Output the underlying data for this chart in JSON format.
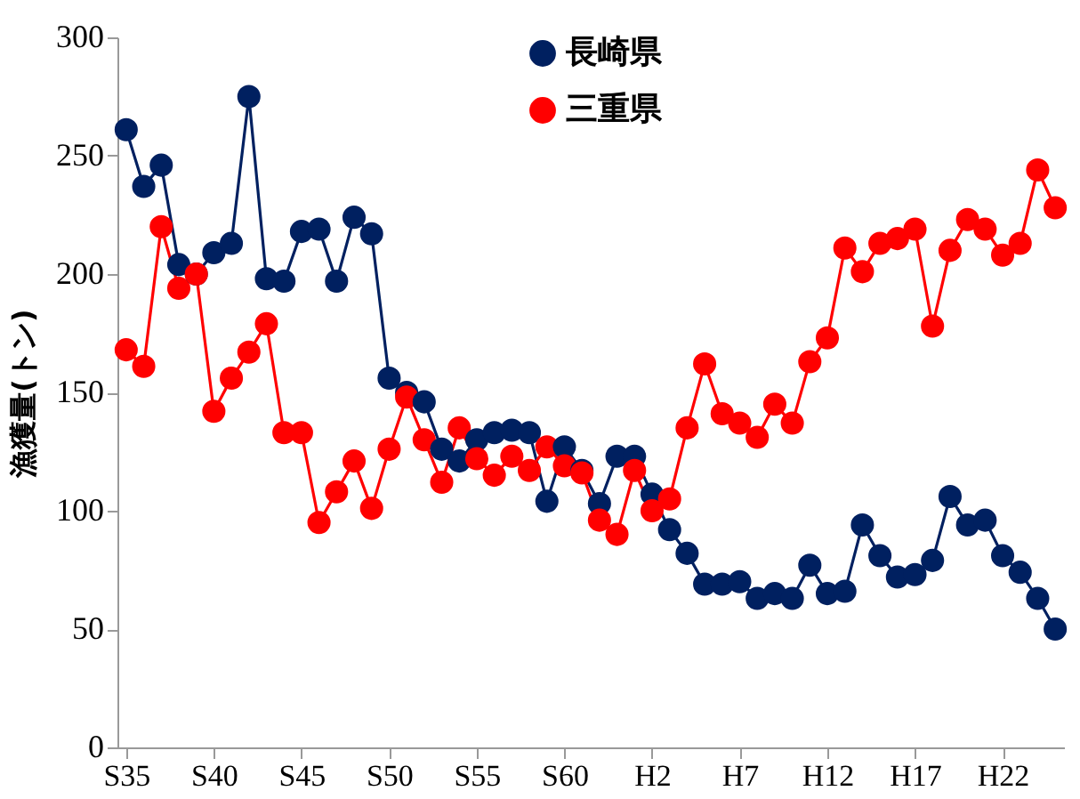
{
  "chart_data": {
    "type": "line",
    "ylabel": "漁獲量(トン)",
    "categories": [
      "S35",
      null,
      null,
      null,
      null,
      "S40",
      null,
      null,
      null,
      null,
      "S45",
      null,
      null,
      null,
      null,
      "S50",
      null,
      null,
      null,
      null,
      "S55",
      null,
      null,
      null,
      null,
      "S60",
      null,
      null,
      null,
      null,
      "H2",
      null,
      null,
      null,
      null,
      "H7",
      null,
      null,
      null,
      null,
      "H12",
      null,
      null,
      null,
      null,
      "H17",
      null,
      null,
      null,
      null,
      "H22",
      null,
      null,
      null
    ],
    "series": [
      {
        "name": "長崎県",
        "color": "#002060",
        "values": [
          261,
          237,
          246,
          204,
          200,
          209,
          213,
          275,
          198,
          197,
          218,
          219,
          197,
          224,
          217,
          156,
          150,
          146,
          126,
          121,
          130,
          133,
          134,
          133,
          104,
          127,
          117,
          103,
          123,
          123,
          107,
          92,
          82,
          69,
          69,
          70,
          63,
          65,
          63,
          77,
          65,
          66,
          94,
          81,
          72,
          73,
          79,
          106,
          94,
          96,
          81,
          74,
          63,
          50
        ]
      },
      {
        "name": "三重県",
        "color": "#ff0000",
        "values": [
          168,
          161,
          220,
          194,
          200,
          142,
          156,
          167,
          179,
          133,
          133,
          95,
          108,
          121,
          101,
          126,
          148,
          130,
          112,
          135,
          122,
          115,
          123,
          117,
          127,
          119,
          116,
          96,
          90,
          117,
          100,
          105,
          135,
          162,
          141,
          137,
          131,
          145,
          137,
          163,
          173,
          211,
          201,
          213,
          215,
          219,
          178,
          210,
          223,
          219,
          208,
          213,
          244,
          228
        ]
      }
    ],
    "ylim": [
      0,
      300
    ],
    "yticks": [
      0,
      50,
      100,
      150,
      200,
      250,
      300
    ],
    "grid": false,
    "legend": "top right",
    "marker": "circle"
  }
}
